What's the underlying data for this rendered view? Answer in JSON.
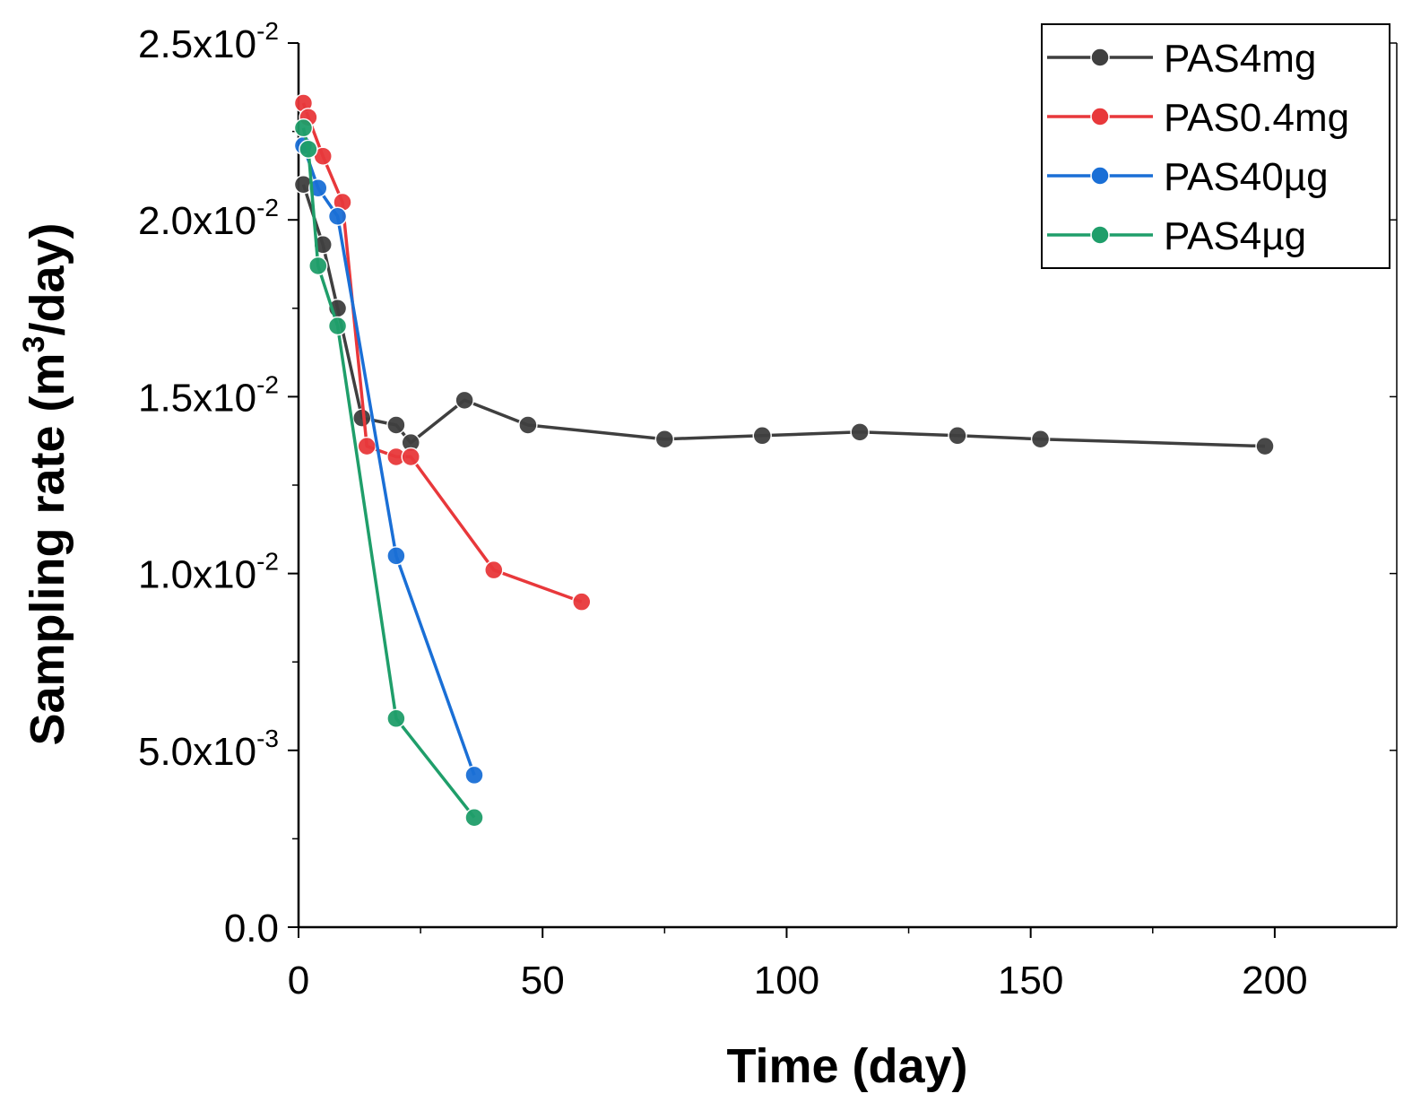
{
  "chart_data": {
    "type": "line",
    "title": "",
    "xlabel": "Time (day)",
    "ylabel": {
      "prefix": "Sampling rate (m",
      "sup": "3",
      "suffix": "/day)"
    },
    "xlim": [
      0,
      225
    ],
    "ylim": [
      0,
      0.025
    ],
    "x_ticks": [
      {
        "value": 0,
        "label": "0"
      },
      {
        "value": 50,
        "label": "50"
      },
      {
        "value": 100,
        "label": "100"
      },
      {
        "value": 150,
        "label": "150"
      },
      {
        "value": 200,
        "label": "200"
      }
    ],
    "y_ticks": [
      {
        "value": 0,
        "mantissa": "0.0",
        "base": "",
        "exp": ""
      },
      {
        "value": 0.005,
        "mantissa": "5.0",
        "base": "x10",
        "exp": "-3"
      },
      {
        "value": 0.01,
        "mantissa": "1.0",
        "base": "x10",
        "exp": "-2"
      },
      {
        "value": 0.015,
        "mantissa": "1.5",
        "base": "x10",
        "exp": "-2"
      },
      {
        "value": 0.02,
        "mantissa": "2.0",
        "base": "x10",
        "exp": "-2"
      },
      {
        "value": 0.025,
        "mantissa": "2.5",
        "base": "x10",
        "exp": "-2"
      }
    ],
    "legend_position": "top-right",
    "series": [
      {
        "name": "PAS4mg",
        "color": "#3f3f3f",
        "x": [
          1,
          5,
          8,
          13,
          20,
          23,
          34,
          47,
          75,
          95,
          115,
          135,
          152,
          198
        ],
        "y": [
          0.021,
          0.0193,
          0.0175,
          0.0144,
          0.0142,
          0.0137,
          0.0149,
          0.0142,
          0.0138,
          0.0139,
          0.014,
          0.0139,
          0.0138,
          0.0136
        ]
      },
      {
        "name": "PAS0.4mg",
        "color": "#e8383b",
        "x": [
          1,
          2,
          5,
          9,
          14,
          20,
          23,
          40,
          58
        ],
        "y": [
          0.0233,
          0.0229,
          0.0218,
          0.0205,
          0.0136,
          0.0133,
          0.0133,
          0.0101,
          0.0092
        ]
      },
      {
        "name": "PAS40µg",
        "color": "#1a6fd6",
        "x": [
          1,
          4,
          8,
          20,
          36
        ],
        "y": [
          0.0221,
          0.0209,
          0.0201,
          0.0105,
          0.0043
        ]
      },
      {
        "name": "PAS4µg",
        "color": "#1f9e6a",
        "x": [
          1,
          2,
          4,
          8,
          20,
          36
        ],
        "y": [
          0.0226,
          0.022,
          0.0187,
          0.017,
          0.0059,
          0.0031
        ]
      }
    ]
  }
}
